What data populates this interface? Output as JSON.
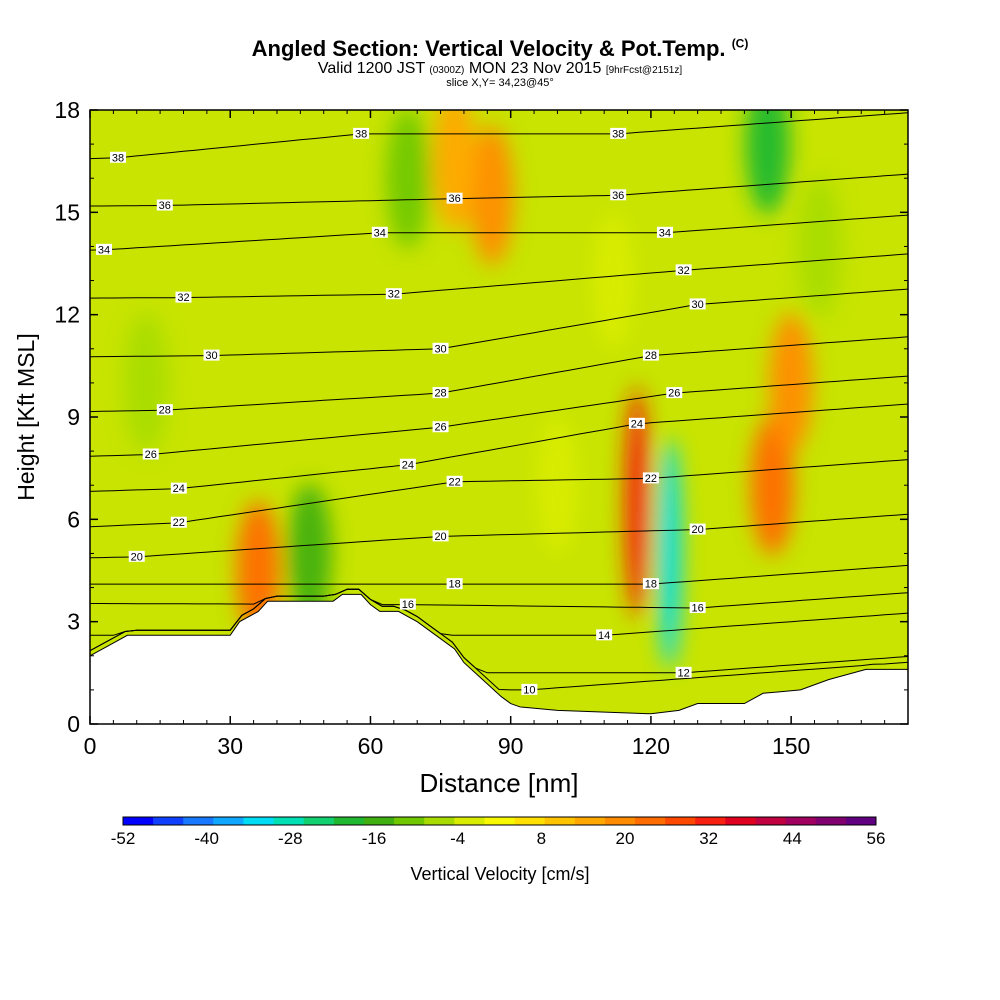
{
  "header": {
    "title_main": "Angled Section: Vertical Velocity & Pot.Temp.",
    "title_unit": "(C)",
    "valid_prefix": "Valid 1200 JST",
    "valid_utc": "(0300Z)",
    "valid_date": "MON 23 Nov 2015",
    "valid_fcst": "[9hrFcst@2151z]",
    "slice": "slice X,Y= 34,23@45°"
  },
  "chart_data": {
    "type": "heatmap",
    "xlabel": "Distance [nm]",
    "ylabel": "Height [Kft MSL]",
    "xlim": [
      0,
      175
    ],
    "ylim": [
      0,
      18
    ],
    "x_ticks": [
      0,
      30,
      60,
      90,
      120,
      150
    ],
    "y_ticks": [
      0,
      3,
      6,
      9,
      12,
      15,
      18
    ],
    "grid": false,
    "colorbar": {
      "label": "Vertical Velocity [cm/s]",
      "placement": "bottom",
      "tick_labels": [
        "-52",
        "-40",
        "-28",
        "-16",
        "-4",
        "8",
        "20",
        "32",
        "44",
        "56"
      ],
      "colors": [
        "#0000ff",
        "#1040ff",
        "#1878ff",
        "#10a8ff",
        "#00dcf4",
        "#00e0b4",
        "#10d070",
        "#20b830",
        "#40b010",
        "#70c800",
        "#a8dc00",
        "#d8ec00",
        "#f8f800",
        "#ffe000",
        "#ffc400",
        "#ffa800",
        "#ff8c00",
        "#ff6c00",
        "#ff4800",
        "#f82010",
        "#e00020",
        "#c00040",
        "#a00060",
        "#800070",
        "#600080"
      ]
    },
    "terrain_top_kft": [
      [
        0,
        2.0
      ],
      [
        4,
        2.3
      ],
      [
        8,
        2.6
      ],
      [
        12,
        2.6
      ],
      [
        30,
        2.6
      ],
      [
        32,
        3.0
      ],
      [
        36,
        3.3
      ],
      [
        38,
        3.6
      ],
      [
        52,
        3.6
      ],
      [
        54,
        3.8
      ],
      [
        58,
        3.8
      ],
      [
        60,
        3.5
      ],
      [
        62,
        3.3
      ],
      [
        66,
        3.3
      ],
      [
        70,
        3.0
      ],
      [
        74,
        2.6
      ],
      [
        78,
        2.2
      ],
      [
        80,
        1.8
      ],
      [
        84,
        1.3
      ],
      [
        88,
        0.8
      ],
      [
        90,
        0.6
      ],
      [
        92,
        0.5
      ],
      [
        100,
        0.4
      ],
      [
        120,
        0.3
      ],
      [
        126,
        0.4
      ],
      [
        130,
        0.6
      ],
      [
        140,
        0.6
      ],
      [
        144,
        0.9
      ],
      [
        152,
        1.0
      ],
      [
        158,
        1.3
      ],
      [
        166,
        1.6
      ],
      [
        175,
        1.6
      ]
    ],
    "vertical_velocity_cells": [
      {
        "x": 36,
        "y": 4.5,
        "value": 22
      },
      {
        "x": 47,
        "y": 5.0,
        "value": -16
      },
      {
        "x": 68,
        "y": 16.0,
        "value": -12
      },
      {
        "x": 86,
        "y": 15.5,
        "value": 18
      },
      {
        "x": 78,
        "y": 16.5,
        "value": 14
      },
      {
        "x": 117,
        "y": 6.5,
        "value": 28
      },
      {
        "x": 124,
        "y": 5.0,
        "value": -34
      },
      {
        "x": 146,
        "y": 7.0,
        "value": 20
      },
      {
        "x": 150,
        "y": 10.0,
        "value": 16
      },
      {
        "x": 145,
        "y": 17.0,
        "value": -20
      },
      {
        "x": 12,
        "y": 10.0,
        "value": -10
      },
      {
        "x": 100,
        "y": 7.0,
        "value": -6
      },
      {
        "x": 112,
        "y": 13.0,
        "value": -6
      },
      {
        "x": 156,
        "y": 14.0,
        "value": -8
      }
    ],
    "isentropes": [
      {
        "theta": 38,
        "label_points": [
          [
            6,
            16.6
          ],
          [
            58,
            17.3
          ],
          [
            113,
            17.3
          ]
        ]
      },
      {
        "theta": 36,
        "label_points": [
          [
            16,
            15.2
          ],
          [
            78,
            15.4
          ],
          [
            113,
            15.5
          ]
        ]
      },
      {
        "theta": 34,
        "label_points": [
          [
            3,
            13.9
          ],
          [
            62,
            14.4
          ],
          [
            123,
            14.4
          ]
        ]
      },
      {
        "theta": 32,
        "label_points": [
          [
            20,
            12.5
          ],
          [
            65,
            12.6
          ],
          [
            127,
            13.3
          ]
        ]
      },
      {
        "theta": 30,
        "label_points": [
          [
            26,
            10.8
          ],
          [
            75,
            11.0
          ],
          [
            130,
            12.3
          ]
        ]
      },
      {
        "theta": 28,
        "label_points": [
          [
            16,
            9.2
          ],
          [
            75,
            9.7
          ],
          [
            120,
            10.8
          ]
        ]
      },
      {
        "theta": 26,
        "label_points": [
          [
            13,
            7.9
          ],
          [
            75,
            8.7
          ],
          [
            125,
            9.7
          ]
        ]
      },
      {
        "theta": 24,
        "label_points": [
          [
            19,
            6.9
          ],
          [
            68,
            7.6
          ],
          [
            117,
            8.8
          ]
        ]
      },
      {
        "theta": 22,
        "label_points": [
          [
            19,
            5.9
          ],
          [
            78,
            7.1
          ],
          [
            120,
            7.2
          ]
        ]
      },
      {
        "theta": 20,
        "label_points": [
          [
            10,
            4.9
          ],
          [
            75,
            5.5
          ],
          [
            130,
            5.7
          ]
        ]
      },
      {
        "theta": 18,
        "label_points": [
          [
            78,
            4.1
          ],
          [
            120,
            4.1
          ]
        ]
      },
      {
        "theta": 16,
        "label_points": [
          [
            68,
            3.5
          ],
          [
            130,
            3.4
          ]
        ]
      },
      {
        "theta": 14,
        "label_points": [
          [
            110,
            2.6
          ]
        ]
      },
      {
        "theta": 12,
        "label_points": [
          [
            127,
            1.5
          ]
        ]
      },
      {
        "theta": 10,
        "label_points": [
          [
            94,
            1.0
          ]
        ]
      }
    ]
  }
}
